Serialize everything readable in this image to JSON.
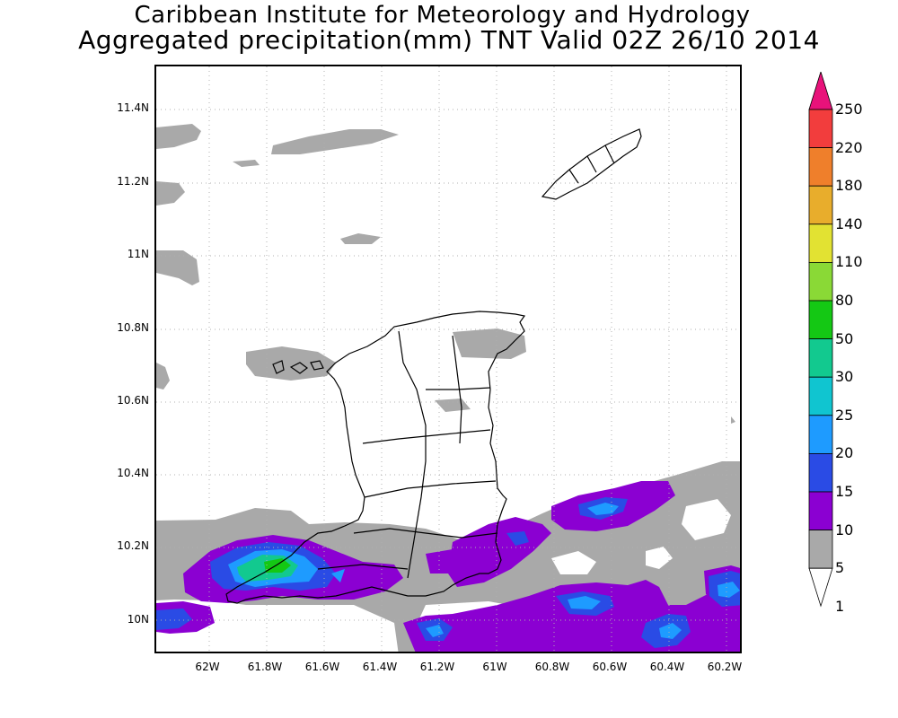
{
  "title_line1": "Caribbean Institute for Meteorology and Hydrology",
  "title_line2": "Aggregated precipitation(mm) TNT Valid 02Z 26/10 2014",
  "axes": {
    "lat_labels": [
      "11.4N",
      "11.2N",
      "11N",
      "10.8N",
      "10.6N",
      "10.4N",
      "10.2N",
      "10N"
    ],
    "lon_labels": [
      "62W",
      "61.8W",
      "61.6W",
      "61.4W",
      "61.2W",
      "61W",
      "60.8W",
      "60.6W",
      "60.4W",
      "60.2W"
    ]
  },
  "colorbar": {
    "levels": [
      "1",
      "5",
      "10",
      "15",
      "20",
      "25",
      "30",
      "50",
      "80",
      "110",
      "140",
      "180",
      "220",
      "250"
    ],
    "colors": [
      "#ffffff",
      "#a9a9a9",
      "#8b00d2",
      "#2a4be5",
      "#1e9bff",
      "#10c5d0",
      "#12c98f",
      "#14c814",
      "#8ad936",
      "#e2e232",
      "#e8ad2c",
      "#ef7f2b",
      "#f23d3d",
      "#e8127a"
    ]
  },
  "map": {
    "region": "Trinidad and Tobago",
    "lon_range": [
      -62.15,
      -60.15
    ],
    "lat_range": [
      9.9,
      11.5
    ],
    "grid": true
  }
}
